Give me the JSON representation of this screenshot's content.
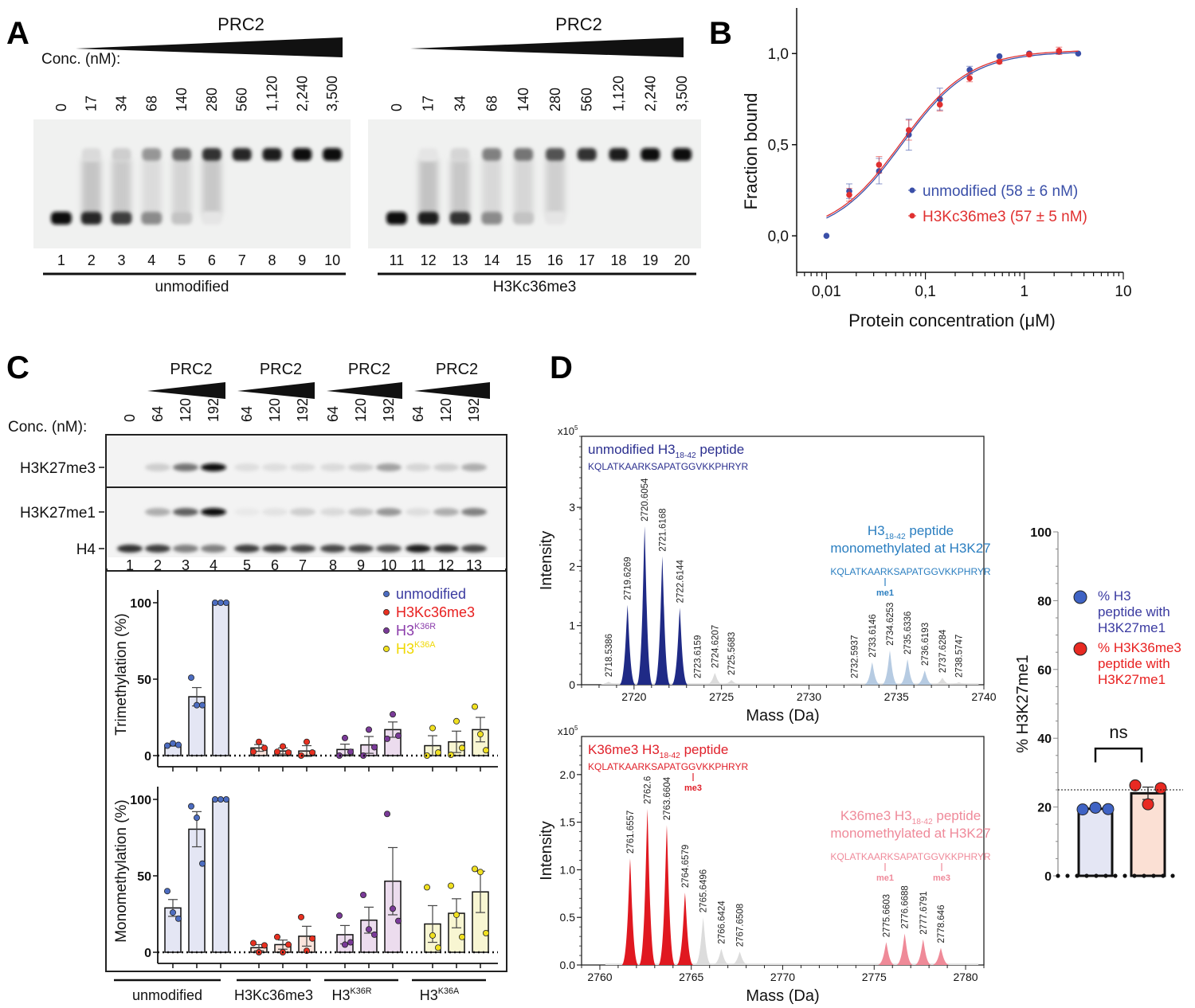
{
  "panels": {
    "A": "A",
    "B": "B",
    "C": "C",
    "D": "D"
  },
  "panel_a": {
    "prc2_label": "PRC2",
    "conc_label": "Conc. (nM):",
    "concentrations": [
      "0",
      "17",
      "34",
      "68",
      "140",
      "280",
      "560",
      "1,120",
      "2,240",
      "3,500"
    ],
    "lanes_left": [
      "1",
      "2",
      "3",
      "4",
      "5",
      "6",
      "7",
      "8",
      "9",
      "10"
    ],
    "lanes_right": [
      "11",
      "12",
      "13",
      "14",
      "15",
      "16",
      "17",
      "18",
      "19",
      "20"
    ],
    "group_left": "unmodified",
    "group_right": "H3Kc36me3",
    "bound_intensity_left": [
      0.0,
      0.1,
      0.15,
      0.4,
      0.6,
      0.85,
      0.9,
      0.95,
      1.0,
      1.0
    ],
    "free_intensity_left": [
      1.0,
      0.9,
      0.8,
      0.45,
      0.2,
      0.05,
      0,
      0,
      0,
      0
    ],
    "bound_intensity_right": [
      0.0,
      0.05,
      0.12,
      0.5,
      0.55,
      0.7,
      0.85,
      0.95,
      1.0,
      1.0
    ],
    "free_intensity_right": [
      1.0,
      0.95,
      0.85,
      0.45,
      0.2,
      0.05,
      0,
      0,
      0,
      0
    ]
  },
  "panel_c_blot": {
    "prc2_label": "PRC2",
    "conc_label": "Conc. (nM):",
    "concentrations": [
      "0",
      "64",
      "120",
      "192",
      "64",
      "120",
      "192",
      "64",
      "120",
      "192",
      "64",
      "120",
      "192"
    ],
    "lanes": [
      "1",
      "2",
      "3",
      "4",
      "5",
      "6",
      "7",
      "8",
      "9",
      "10",
      "11",
      "12",
      "13"
    ],
    "row_labels": [
      "H3K27me3",
      "H3K27me1",
      "H4"
    ],
    "me3_intensity": [
      0.02,
      0.15,
      0.55,
      1.0,
      0.08,
      0.08,
      0.1,
      0.1,
      0.15,
      0.35,
      0.12,
      0.15,
      0.3
    ],
    "me1_intensity": [
      0.02,
      0.3,
      0.65,
      1.0,
      0.03,
      0.06,
      0.15,
      0.1,
      0.2,
      0.4,
      0.08,
      0.3,
      0.5
    ],
    "h4_intensity": [
      0.85,
      0.8,
      0.5,
      0.5,
      0.8,
      0.8,
      0.75,
      0.75,
      0.75,
      0.7,
      0.95,
      0.85,
      0.75
    ],
    "group_labels": [
      "unmodified",
      "H3Kc36me3",
      "H3",
      "H3"
    ],
    "group_superscripts": [
      "",
      "",
      "K36R",
      "K36A"
    ]
  },
  "chart_data": [
    {
      "id": "B",
      "type": "scatter",
      "title": "",
      "xlabel": "Protein concentration (μM)",
      "ylabel": "Fraction bound",
      "xscale": "log",
      "xlim": [
        0.005,
        10
      ],
      "ylim": [
        -0.2,
        1.25
      ],
      "xticks": [
        0.01,
        0.1,
        1,
        10
      ],
      "xtick_labels": [
        "0,01",
        "0,1",
        "1",
        "10"
      ],
      "yticks": [
        0,
        0.5,
        1
      ],
      "ytick_labels": [
        "0,0",
        "0,5",
        "1,0"
      ],
      "legend_position": "center-right",
      "series": [
        {
          "name": "unmodified (58 ± 6 nM)",
          "color": "#3a4fa8",
          "kd_uM": 0.058,
          "x": [
            0.01,
            0.017,
            0.034,
            0.068,
            0.14,
            0.28,
            0.56,
            1.12,
            2.24,
            3.5
          ],
          "y": [
            0.0,
            0.245,
            0.355,
            0.555,
            0.75,
            0.91,
            0.985,
            1.0,
            1.01,
            1.0
          ],
          "err": [
            0,
            0.04,
            0.07,
            0.085,
            0.06,
            0.02,
            0.0,
            0.0,
            0.01,
            0.0
          ]
        },
        {
          "name": "H3Kc36me3 (57 ± 5 nM)",
          "color": "#e03030",
          "kd_uM": 0.057,
          "x": [
            0.017,
            0.034,
            0.068,
            0.14,
            0.28,
            0.56,
            1.12,
            2.24
          ],
          "y": [
            0.225,
            0.39,
            0.58,
            0.72,
            0.865,
            0.955,
            0.995,
            1.015
          ],
          "err": [
            0.035,
            0.045,
            0.055,
            0.035,
            0.02,
            0.01,
            0.01,
            0.02
          ]
        }
      ]
    },
    {
      "id": "C-top",
      "type": "bar",
      "ylabel": "Trimethylation (%)",
      "ylim": [
        0,
        100
      ],
      "yticks": [
        0,
        50,
        100
      ],
      "ytick_labels": [
        "0",
        "50",
        "100"
      ],
      "legend_position": "top-right",
      "legend": [
        {
          "label": "unmodified",
          "sup": "",
          "color": "#3a3aa0",
          "dot": "#4c6cc0"
        },
        {
          "label": "H3Kc36me3",
          "sup": "",
          "color": "#e82020",
          "dot": "#e83020"
        },
        {
          "label": "H3",
          "sup": "K36R",
          "color": "#8a3aaa",
          "dot": "#7a3a98"
        },
        {
          "label": "H3",
          "sup": "K36A",
          "color": "#f0d800",
          "dot": "#f0e020"
        }
      ],
      "groups": [
        {
          "name": "unmodified",
          "fill": "#e4e6f4",
          "dot": "#4c6cc0",
          "bars": [
            {
              "mean": 7,
              "sem": 0.8,
              "points": [
                6.5,
                8,
                7
              ]
            },
            {
              "mean": 38.5,
              "sem": 6,
              "points": [
                51,
                33,
                33
              ]
            },
            {
              "mean": 100,
              "sem": 0,
              "points": [
                100,
                100,
                100
              ]
            }
          ]
        },
        {
          "name": "H3Kc36me3",
          "fill": "#fbe4dc",
          "dot": "#e83020",
          "bars": [
            {
              "mean": 5,
              "sem": 2.2,
              "points": [
                2.5,
                9,
                5
              ]
            },
            {
              "mean": 3,
              "sem": 2,
              "points": [
                2.5,
                6,
                2
              ]
            },
            {
              "mean": 3,
              "sem": 3.5,
              "points": [
                0,
                9,
                2
              ]
            }
          ]
        },
        {
          "name": "H3K36R",
          "fill": "#ecdcee",
          "dot": "#7a3a98",
          "bars": [
            {
              "mean": 4,
              "sem": 3.5,
              "points": [
                0,
                11.5,
                2.5
              ]
            },
            {
              "mean": 7,
              "sem": 5.5,
              "points": [
                0,
                17,
                5.5
              ]
            },
            {
              "mean": 17,
              "sem": 5,
              "points": [
                11,
                27,
                13
              ]
            }
          ]
        },
        {
          "name": "H3K36A",
          "fill": "#f8f6d2",
          "dot": "#f0e020",
          "bars": [
            {
              "mean": 6.5,
              "sem": 6.5,
              "points": [
                0,
                18,
                2
              ]
            },
            {
              "mean": 9,
              "sem": 7,
              "points": [
                0.5,
                22.5,
                5
              ]
            },
            {
              "mean": 17,
              "sem": 8,
              "points": [
                32,
                14,
                3.5
              ]
            }
          ]
        }
      ]
    },
    {
      "id": "C-bottom",
      "type": "bar",
      "ylabel": "Monomethylation (%)",
      "ylim": [
        0,
        100
      ],
      "yticks": [
        0,
        50,
        100
      ],
      "ytick_labels": [
        "0",
        "50",
        "100"
      ],
      "xgroup_labels": [
        "unmodified",
        "H3Kc36me3",
        "H3",
        "H3"
      ],
      "xgroup_superscripts": [
        "",
        "",
        "K36R",
        "K36A"
      ],
      "groups": [
        {
          "name": "unmodified",
          "fill": "#e4e6f4",
          "dot": "#4c6cc0",
          "bars": [
            {
              "mean": 29,
              "sem": 5.5,
              "points": [
                40,
                26,
                22
              ]
            },
            {
              "mean": 80.5,
              "sem": 11.5,
              "points": [
                95.5,
                88,
                58
              ]
            },
            {
              "mean": 100,
              "sem": 0,
              "points": [
                100,
                100,
                100
              ]
            }
          ]
        },
        {
          "name": "H3Kc36me3",
          "fill": "#fbe4dc",
          "dot": "#e83020",
          "bars": [
            {
              "mean": 3,
              "sem": 2,
              "points": [
                6,
                0,
                4.5
              ]
            },
            {
              "mean": 5,
              "sem": 3,
              "points": [
                10,
                0,
                5
              ]
            },
            {
              "mean": 10.5,
              "sem": 6.5,
              "points": [
                23,
                1,
                9
              ]
            }
          ]
        },
        {
          "name": "H3K36R",
          "fill": "#ecdcee",
          "dot": "#7a3a98",
          "bars": [
            {
              "mean": 11.5,
              "sem": 6,
              "points": [
                24,
                5,
                6.5
              ]
            },
            {
              "mean": 21,
              "sem": 8.5,
              "points": [
                37.5,
                15,
                11.5
              ]
            },
            {
              "mean": 46.5,
              "sem": 22,
              "points": [
                90.5,
                28.5,
                20.5
              ]
            }
          ]
        },
        {
          "name": "H3K36A",
          "fill": "#f8f6d2",
          "dot": "#f0e020",
          "bars": [
            {
              "mean": 18.5,
              "sem": 12,
              "points": [
                42.5,
                11,
                3
              ]
            },
            {
              "mean": 25.5,
              "sem": 9.5,
              "points": [
                43.5,
                24.5,
                10
              ]
            },
            {
              "mean": 39.5,
              "sem": 13.5,
              "points": [
                54.5,
                52.5,
                12.5
              ]
            }
          ]
        }
      ]
    },
    {
      "id": "D-top",
      "type": "area",
      "title": "unmodified H3 18-42 peptide",
      "exponent_label": "x10",
      "exponent_sup": "5",
      "xlabel": "Mass (Da)",
      "ylabel": "Intensity",
      "xlim": [
        2717,
        2740
      ],
      "ylim": [
        0,
        4.2
      ],
      "xticks": [
        2720,
        2725,
        2730,
        2735,
        2740
      ],
      "yticks": [
        0,
        1,
        2,
        3
      ],
      "ann_main": {
        "title": "unmodified H3",
        "sub": "18-42",
        "title_tail": " peptide",
        "sequence": "KQLATKAARKSAPATGGVKKPHRYR",
        "color": "#2b2f8f"
      },
      "ann_mod": {
        "title": "H3",
        "sub": "18-42",
        "title_tail": " peptide",
        "line2": "monomethylated at H3K27",
        "sequence": "KQLATKAARKSAPATGGVKKPHRYR",
        "marks": [
          "me1"
        ],
        "color": "#2a7ec0"
      },
      "peaks": [
        {
          "mz": 2718.5386,
          "h": 0.05,
          "group": "bg"
        },
        {
          "mz": 2719.6269,
          "h": 1.35,
          "group": "main"
        },
        {
          "mz": 2720.6054,
          "h": 2.68,
          "group": "main"
        },
        {
          "mz": 2721.6168,
          "h": 2.17,
          "group": "main"
        },
        {
          "mz": 2722.6144,
          "h": 1.3,
          "group": "main"
        },
        {
          "mz": 2723.6159,
          "h": 0.0,
          "group": "bg"
        },
        {
          "mz": 2724.6207,
          "h": 0.2,
          "group": "bg"
        },
        {
          "mz": 2725.5683,
          "h": 0.08,
          "group": "bg"
        },
        {
          "mz": 2732.5937,
          "h": 0.02,
          "group": "bg"
        },
        {
          "mz": 2733.6146,
          "h": 0.38,
          "group": "mod"
        },
        {
          "mz": 2734.6253,
          "h": 0.58,
          "group": "mod"
        },
        {
          "mz": 2735.6336,
          "h": 0.43,
          "group": "mod"
        },
        {
          "mz": 2736.6193,
          "h": 0.24,
          "group": "mod"
        },
        {
          "mz": 2737.6284,
          "h": 0.12,
          "group": "bg"
        },
        {
          "mz": 2738.5747,
          "h": 0.04,
          "group": "bg"
        }
      ]
    },
    {
      "id": "D-bottom",
      "type": "area",
      "exponent_label": "x10",
      "exponent_sup": "5",
      "xlabel": "Mass (Da)",
      "ylabel": "Intensity",
      "xlim": [
        2759,
        2781
      ],
      "ylim": [
        0,
        2.4
      ],
      "xticks": [
        2760,
        2765,
        2770,
        2775,
        2780
      ],
      "yticks": [
        0,
        0.5,
        1.0,
        1.5,
        2.0
      ],
      "ytick_labels": [
        "0.0",
        "0.5",
        "1.0",
        "1.5",
        "2.0"
      ],
      "ann_main": {
        "title": "K36me3 H3",
        "sub": "18-42",
        "title_tail": " peptide",
        "sequence": "KQLATKAARKSAPATGGVKKPHRYR",
        "marks": [
          "me3"
        ],
        "color": "#e0202a"
      },
      "ann_mod": {
        "title": "K36me3 H3",
        "sub": "18-42",
        "title_tail": " peptide",
        "line2": "monomethylated at H3K27",
        "sequence": "KQLATKAARKSAPATGGVKKPHRYR",
        "marks": [
          "me1",
          "me3"
        ],
        "color": "#ef8a9a"
      },
      "peaks": [
        {
          "mz": 2761.6557,
          "h": 1.12,
          "group": "main"
        },
        {
          "mz": 2762.6,
          "h": 1.64,
          "group": "main"
        },
        {
          "mz": 2763.6604,
          "h": 1.47,
          "group": "main"
        },
        {
          "mz": 2764.6579,
          "h": 0.76,
          "group": "main"
        },
        {
          "mz": 2765.6496,
          "h": 0.5,
          "group": "bg"
        },
        {
          "mz": 2766.6424,
          "h": 0.17,
          "group": "bg"
        },
        {
          "mz": 2767.6508,
          "h": 0.14,
          "group": "bg"
        },
        {
          "mz": 2775.6603,
          "h": 0.24,
          "group": "mod"
        },
        {
          "mz": 2776.6688,
          "h": 0.33,
          "group": "mod"
        },
        {
          "mz": 2777.6791,
          "h": 0.27,
          "group": "mod"
        },
        {
          "mz": 2778.646,
          "h": 0.18,
          "group": "mod"
        }
      ]
    },
    {
      "id": "D-right",
      "type": "bar",
      "ylabel": "% H3K27me1",
      "ylim": [
        0,
        100
      ],
      "yticks": [
        0,
        20,
        40,
        60,
        80,
        100
      ],
      "reference_line": 25,
      "significance": "ns",
      "legend_position": "top-right",
      "legend": [
        {
          "lines": [
            "% H3",
            "peptide with",
            "H3K27me1"
          ],
          "color": "#3a3aa0",
          "dot": "#3f63c4"
        },
        {
          "lines": [
            "% H3K36me3",
            "peptide with",
            "H3K27me1"
          ],
          "color": "#e82020",
          "dot": "#e82a22"
        }
      ],
      "bars": [
        {
          "name": "% H3 peptide with H3K27me1",
          "mean": 19.5,
          "sem": 0.3,
          "points": [
            19.3,
            19.8,
            19.4
          ],
          "fill": "#e4e6f4",
          "dot": "#3f63c4"
        },
        {
          "name": "% H3K36me3 peptide with H3K27me1",
          "mean": 24,
          "sem": 1.8,
          "points": [
            26.3,
            20.8,
            25.5
          ],
          "fill": "#fbe0d4",
          "dot": "#e82a22"
        }
      ]
    }
  ]
}
